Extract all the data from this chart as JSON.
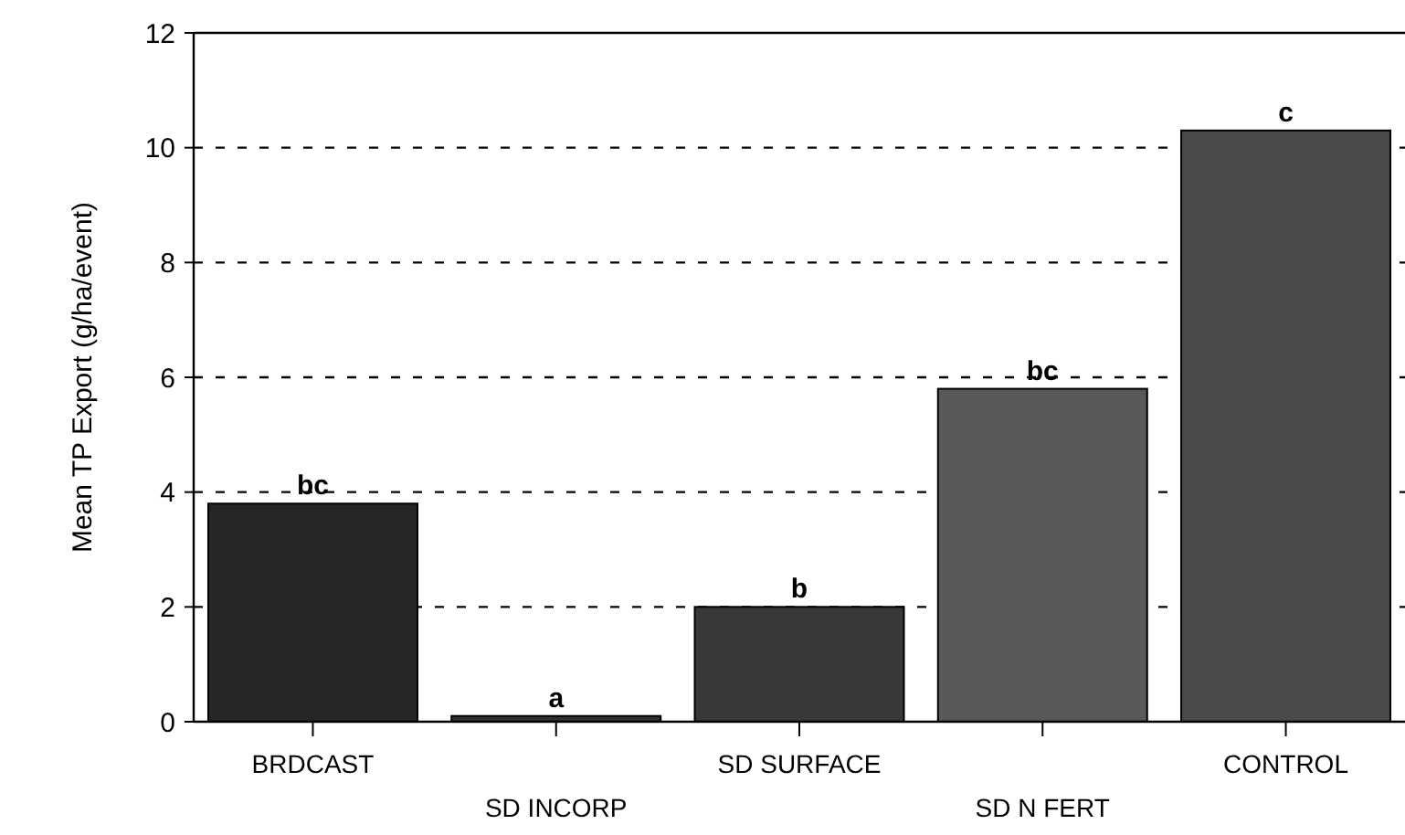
{
  "chart_data": {
    "type": "bar",
    "ylabel": "Mean TP Export (g/ha/event)",
    "categories": [
      "BRDCAST",
      "SD INCORP",
      "SD SURFACE",
      "SD N FERT",
      "CONTROL"
    ],
    "values": [
      3.8,
      0.1,
      2.0,
      5.8,
      10.3
    ],
    "colors": [
      "#262626",
      "#303030",
      "#383838",
      "#595959",
      "#4a4a4a"
    ],
    "ylim": [
      0,
      12
    ],
    "yticks": [
      0,
      2,
      4,
      6,
      8,
      10,
      12
    ],
    "grid": "y",
    "annotations": [
      {
        "text": "bc",
        "x": "BRDCAST",
        "y": 3.8
      },
      {
        "text": "a",
        "x": "SD INCORP",
        "y": 0.1
      },
      {
        "text": "b",
        "x": "SD SURFACE",
        "y": 2.0
      },
      {
        "text": "bc",
        "x": "SD N FERT",
        "y": 5.8
      },
      {
        "text": "c",
        "x": "CONTROL",
        "y": 10.3
      }
    ]
  }
}
